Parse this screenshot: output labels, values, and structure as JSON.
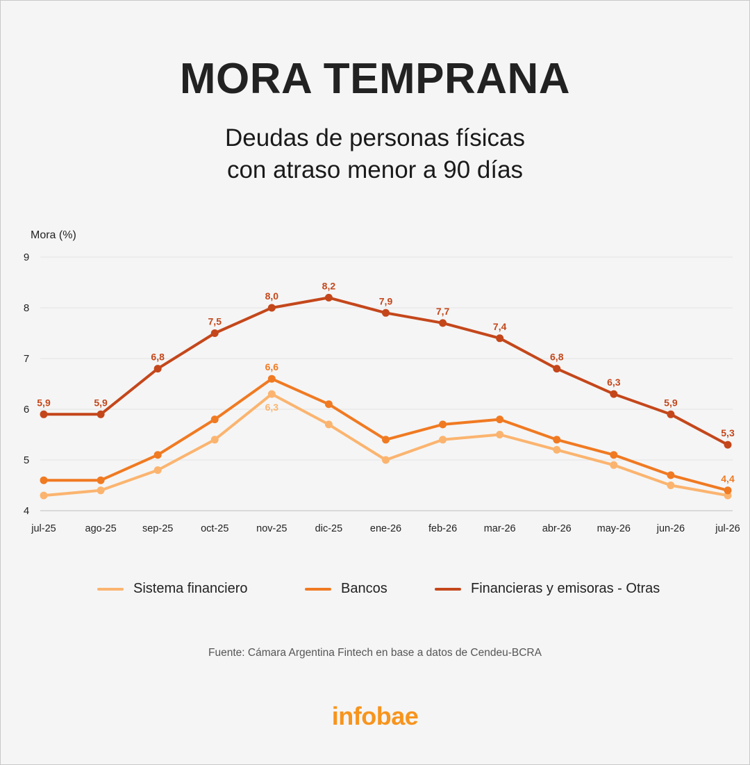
{
  "title": "MORA TEMPRANA",
  "subtitle_line1": "Deudas de personas físicas",
  "subtitle_line2": "con atraso menor a 90 días",
  "source": "Fuente: Cámara Argentina Fintech en base a datos de Cendeu-BCRA",
  "brand": "infobae",
  "chart_data": {
    "type": "line",
    "ylabel": "Mora (%)",
    "xlabel": "",
    "ylim": [
      4,
      9
    ],
    "yticks": [
      "4",
      "5",
      "6",
      "7",
      "8",
      "9"
    ],
    "grid": true,
    "legend_position": "bottom",
    "categories": [
      "jul-25",
      "ago-25",
      "sep-25",
      "oct-25",
      "nov-25",
      "dic-25",
      "ene-26",
      "feb-26",
      "mar-26",
      "abr-26",
      "may-26",
      "jun-26",
      "jul-26"
    ],
    "series": [
      {
        "name": "Sistema financiero",
        "color": "#fbb46f",
        "values": [
          4.3,
          4.4,
          4.8,
          5.4,
          6.3,
          5.7,
          5.0,
          5.4,
          5.5,
          5.2,
          4.9,
          4.5,
          4.3
        ],
        "labels": [
          {
            "index": 4,
            "text": "6,3",
            "placement": "below"
          }
        ]
      },
      {
        "name": "Bancos",
        "color": "#f07a22",
        "values": [
          4.6,
          4.6,
          5.1,
          5.8,
          6.6,
          6.1,
          5.4,
          5.7,
          5.8,
          5.4,
          5.1,
          4.7,
          4.4
        ],
        "labels": [
          {
            "index": 4,
            "text": "6,6",
            "placement": "above"
          },
          {
            "index": 12,
            "text": "4,4",
            "placement": "above"
          }
        ]
      },
      {
        "name": "Financieras y emisoras - Otras",
        "color": "#c4471b",
        "values": [
          5.9,
          5.9,
          6.8,
          7.5,
          8.0,
          8.2,
          7.9,
          7.7,
          7.4,
          6.8,
          6.3,
          5.9,
          5.3
        ],
        "labels": [
          {
            "index": 0,
            "text": "5,9",
            "placement": "above"
          },
          {
            "index": 1,
            "text": "5,9",
            "placement": "above"
          },
          {
            "index": 2,
            "text": "6,8",
            "placement": "above"
          },
          {
            "index": 3,
            "text": "7,5",
            "placement": "above"
          },
          {
            "index": 4,
            "text": "8,0",
            "placement": "above"
          },
          {
            "index": 5,
            "text": "8,2",
            "placement": "above"
          },
          {
            "index": 6,
            "text": "7,9",
            "placement": "above"
          },
          {
            "index": 7,
            "text": "7,7",
            "placement": "above"
          },
          {
            "index": 8,
            "text": "7,4",
            "placement": "above"
          },
          {
            "index": 9,
            "text": "6,8",
            "placement": "above"
          },
          {
            "index": 10,
            "text": "6,3",
            "placement": "above"
          },
          {
            "index": 11,
            "text": "5,9",
            "placement": "above"
          },
          {
            "index": 12,
            "text": "5,3",
            "placement": "above"
          }
        ]
      }
    ]
  }
}
